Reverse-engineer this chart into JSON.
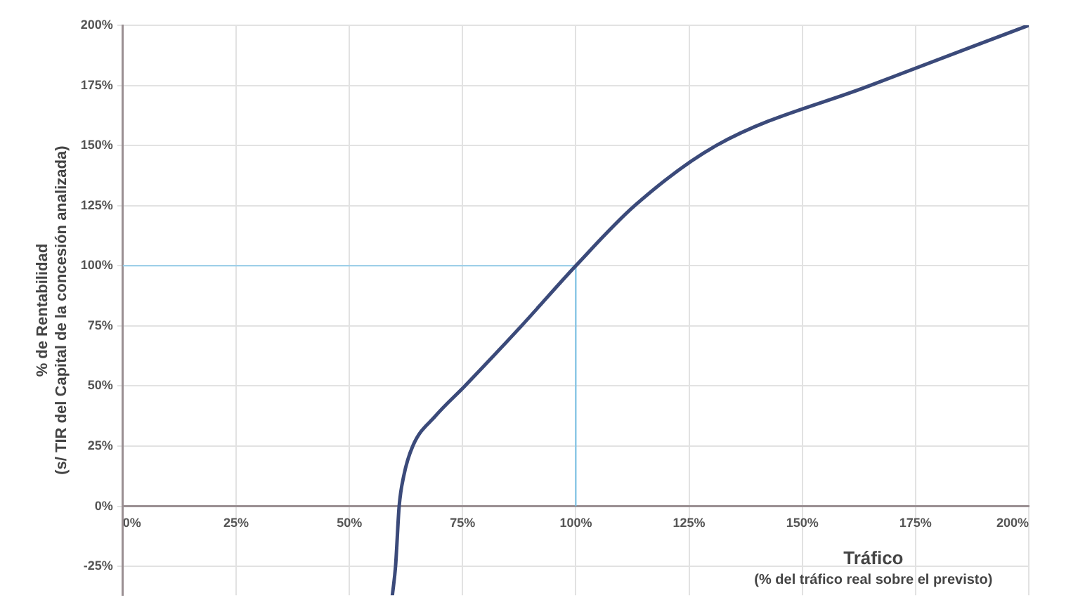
{
  "chart_data": {
    "type": "line",
    "xlabel": "Tráfico\n(% del tráfico real sobre el previsto)",
    "ylabel": "% de Rentabilidad\n(s/ TIR del Capital de la concesión analizada)",
    "series": [
      {
        "color": "#3b4a7a",
        "x": [
          59.5,
          60.2,
          61,
          62,
          64,
          69,
          75.5,
          88,
          100,
          113,
          131,
          165,
          200
        ],
        "values": [
          -37,
          -25,
          0,
          12.5,
          25,
          37.5,
          50,
          75,
          100,
          125,
          150,
          175,
          200
        ]
      }
    ],
    "xlim": [
      0,
      200
    ],
    "xticks": [
      {
        "value": 0,
        "label": "0%"
      },
      {
        "value": 25,
        "label": "25%"
      },
      {
        "value": 50,
        "label": "50%"
      },
      {
        "value": 75,
        "label": "75%"
      },
      {
        "value": 100,
        "label": "100%"
      },
      {
        "value": 125,
        "label": "125%"
      },
      {
        "value": 150,
        "label": "150%"
      },
      {
        "value": 175,
        "label": "175%"
      },
      {
        "value": 200,
        "label": "200%"
      }
    ],
    "ylim": [
      -37,
      200
    ],
    "yticks": [
      {
        "value": -25,
        "label": "-25%"
      },
      {
        "value": 0,
        "label": "0%"
      },
      {
        "value": 25,
        "label": "25%"
      },
      {
        "value": 50,
        "label": "50%"
      },
      {
        "value": 75,
        "label": "75%"
      },
      {
        "value": 100,
        "label": "100%"
      },
      {
        "value": 125,
        "label": "125%"
      },
      {
        "value": 150,
        "label": "150%"
      },
      {
        "value": 175,
        "label": "175%"
      },
      {
        "value": 200,
        "label": "200%"
      }
    ],
    "ref_lines": [
      {
        "axis": "y",
        "value": 100,
        "color": "#94cdea"
      },
      {
        "axis": "x",
        "value": 100,
        "color": "#74bfe6"
      }
    ],
    "grid": true,
    "marker": "none",
    "line_style": "solid"
  }
}
